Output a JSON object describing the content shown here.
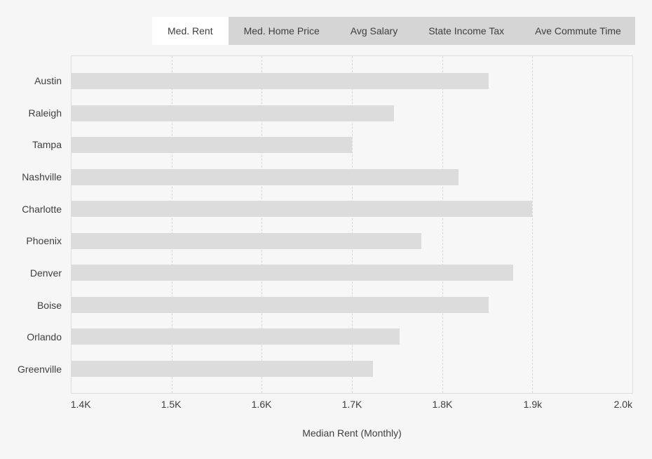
{
  "colors": {
    "page_bg": "#f6f6f6",
    "plot_bg": "#f7f7f7",
    "tabbar_bg": "#d5d5d5",
    "active_tab_bg": "#ffffff",
    "bar": "#dcdcdc",
    "border": "#dcdcdc",
    "gridline": "#d8d8d8",
    "text": "#3e3e3e"
  },
  "tabs": {
    "items": [
      {
        "label": "Med. Rent",
        "active": true
      },
      {
        "label": "Med. Home Price",
        "active": false
      },
      {
        "label": "Avg Salary",
        "active": false
      },
      {
        "label": "State Income Tax",
        "active": false
      },
      {
        "label": "Ave Commute Time",
        "active": false
      }
    ]
  },
  "chart_data": {
    "type": "bar",
    "orientation": "horizontal",
    "title": "",
    "xlabel": "Median Rent (Monthly)",
    "ylabel": "",
    "categories": [
      "Austin",
      "Raleigh",
      "Tampa",
      "Nashville",
      "Charlotte",
      "Phoenix",
      "Denver",
      "Boise",
      "Orlando",
      "Greenville"
    ],
    "values": [
      1852,
      1747,
      1700,
      1818,
      1900,
      1777,
      1879,
      1852,
      1753,
      1723
    ],
    "xlim": [
      1389,
      2011
    ],
    "x_ticks": [
      {
        "value": 1400,
        "label": "1.4K"
      },
      {
        "value": 1500,
        "label": "1.5K"
      },
      {
        "value": 1600,
        "label": "1.6K"
      },
      {
        "value": 1700,
        "label": "1.7K"
      },
      {
        "value": 1800,
        "label": "1.8K"
      },
      {
        "value": 1900,
        "label": "1.9k"
      },
      {
        "value": 2000,
        "label": "2.0k"
      }
    ],
    "grid_values": [
      1500,
      1600,
      1700,
      1800,
      1900
    ],
    "grid_style": "dashed-vertical",
    "legend": "none"
  }
}
